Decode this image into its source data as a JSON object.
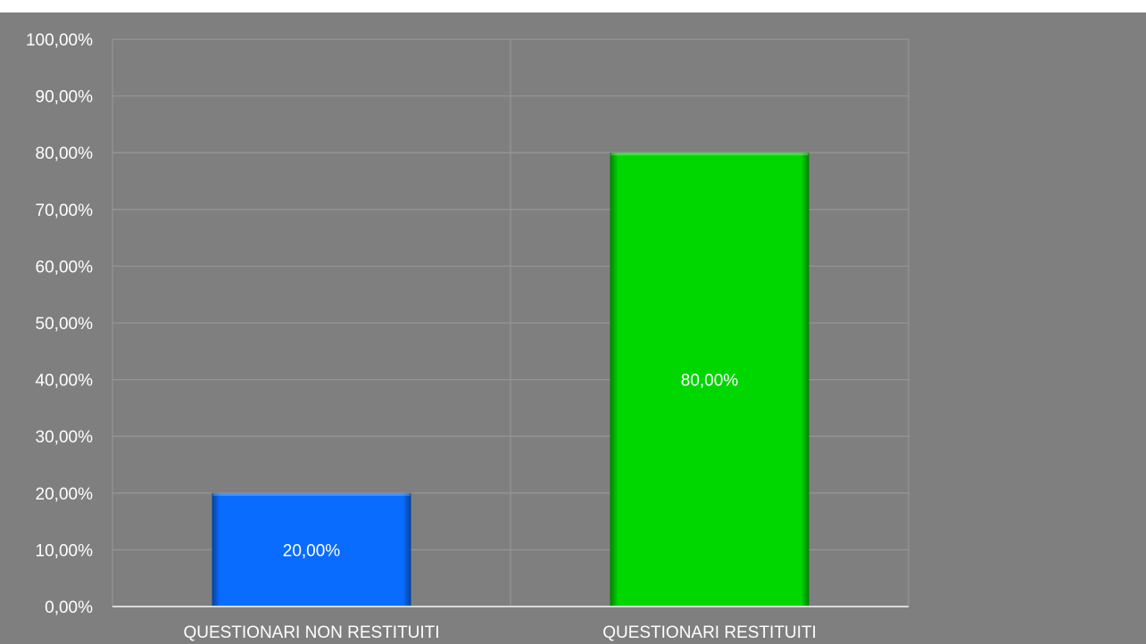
{
  "chart_data": {
    "type": "bar",
    "categories": [
      "QUESTIONARI NON RESTITUITI",
      "QUESTIONARI RESTITUITI"
    ],
    "values": [
      20,
      80
    ],
    "data_labels": [
      "20,00%",
      "80,00%"
    ],
    "ylim": [
      0,
      100
    ],
    "yticks": [
      0,
      10,
      20,
      30,
      40,
      50,
      60,
      70,
      80,
      90,
      100
    ],
    "ytick_labels": [
      "0,00%",
      "10,00%",
      "20,00%",
      "30,00%",
      "40,00%",
      "50,00%",
      "60,00%",
      "70,00%",
      "80,00%",
      "90,00%",
      "100,00%"
    ],
    "bar_colors": [
      "#0a6cff",
      "#00d600"
    ],
    "title": "",
    "xlabel": "",
    "ylabel": "",
    "grid": true,
    "legend": false
  },
  "colors": {
    "background": "#7f7f7f",
    "gridline": "#949494",
    "axis": "#d9d9d9",
    "text": "#ffffff"
  }
}
